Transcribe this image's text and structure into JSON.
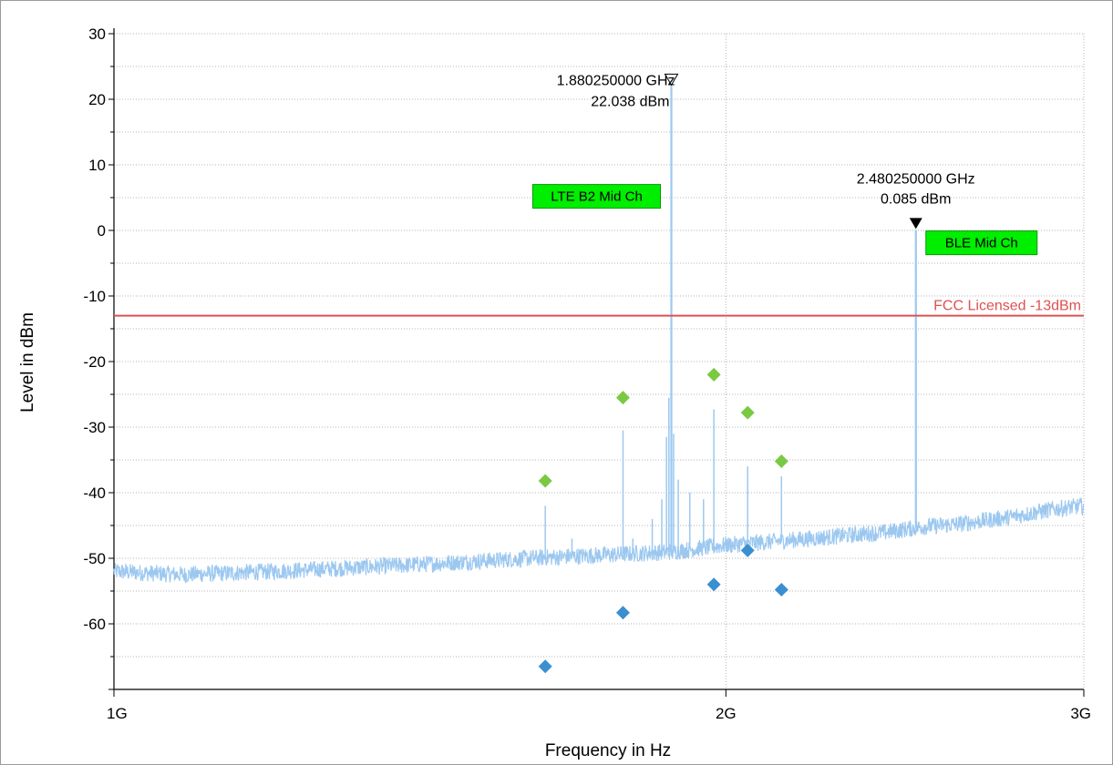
{
  "chart_data": {
    "type": "line",
    "xlabel": "Frequency in Hz",
    "ylabel": "Level in dBm",
    "x_scale": "log",
    "xlim": [
      1000000000,
      3000000000
    ],
    "ylim": [
      -70,
      30
    ],
    "x_ticks": [
      {
        "value": 1000000000,
        "label": "1G"
      },
      {
        "value": 2000000000,
        "label": "2G"
      },
      {
        "value": 3000000000,
        "label": "3G"
      }
    ],
    "y_ticks": [
      {
        "value": 30,
        "label": "30"
      },
      {
        "value": 20,
        "label": "20"
      },
      {
        "value": 10,
        "label": "10"
      },
      {
        "value": 0,
        "label": "0"
      },
      {
        "value": -10,
        "label": "-10"
      },
      {
        "value": -20,
        "label": "-20"
      },
      {
        "value": -30,
        "label": "-30"
      },
      {
        "value": -40,
        "label": "-40"
      },
      {
        "value": -50,
        "label": "-50"
      },
      {
        "value": -60,
        "label": "-60"
      }
    ],
    "grid": true,
    "colors": {
      "trace": "#9cc8f0",
      "limit": "#e05050",
      "peak_green": "#7ac943",
      "peak_blue": "#3a8fd0",
      "tag_fill": "#00ee00",
      "tag_border": "#009900"
    },
    "noise_floor": {
      "points": [
        [
          1000000000,
          -52.0
        ],
        [
          1080000000,
          -52.5
        ],
        [
          1200000000,
          -52.0
        ],
        [
          1400000000,
          -51.0
        ],
        [
          1600000000,
          -50.0
        ],
        [
          1800000000,
          -49.3
        ],
        [
          1880000000,
          -49.0
        ],
        [
          2000000000,
          -48.0
        ],
        [
          2200000000,
          -47.0
        ],
        [
          2400000000,
          -46.0
        ],
        [
          2500000000,
          -45.2
        ],
        [
          2600000000,
          -44.8
        ],
        [
          2750000000,
          -43.8
        ],
        [
          2900000000,
          -42.5
        ],
        [
          3000000000,
          -42.0
        ]
      ]
    },
    "spurs": [
      {
        "freq": 1630000000,
        "level": -42
      },
      {
        "freq": 1680000000,
        "level": -47
      },
      {
        "freq": 1780000000,
        "level": -30.5
      },
      {
        "freq": 1800000000,
        "level": -47
      },
      {
        "freq": 1840000000,
        "level": -44
      },
      {
        "freq": 1860000000,
        "level": -41
      },
      {
        "freq": 1870000000,
        "level": -31.5
      },
      {
        "freq": 1875000000,
        "level": -25.5
      },
      {
        "freq": 1885000000,
        "level": -31
      },
      {
        "freq": 1895000000,
        "level": -38
      },
      {
        "freq": 1920000000,
        "level": -40
      },
      {
        "freq": 1950000000,
        "level": -41
      },
      {
        "freq": 1973000000,
        "level": -27.3
      },
      {
        "freq": 2050000000,
        "level": -36
      },
      {
        "freq": 2130000000,
        "level": -37.5
      }
    ],
    "peaks": [
      {
        "freq": 1880250000,
        "level": 22.038,
        "freq_label": "1.880250000 GHz",
        "level_label": "22.038 dBm",
        "tag": "LTE B2 Mid Ch"
      },
      {
        "freq": 2480250000,
        "level": 0.085,
        "freq_label": "2.480250000 GHz",
        "level_label": "0.085 dBm",
        "tag": "BLE Mid Ch"
      }
    ],
    "limit_line": {
      "level": -13,
      "label": "FCC Licensed -13dBm"
    },
    "green_points": [
      {
        "freq": 1630000000,
        "level": -38.2
      },
      {
        "freq": 1780000000,
        "level": -25.5
      },
      {
        "freq": 1973000000,
        "level": -22.0
      },
      {
        "freq": 2050000000,
        "level": -27.8
      },
      {
        "freq": 2130000000,
        "level": -35.2
      }
    ],
    "blue_points": [
      {
        "freq": 1630000000,
        "level": -66.5
      },
      {
        "freq": 1780000000,
        "level": -58.3
      },
      {
        "freq": 1973000000,
        "level": -54.0
      },
      {
        "freq": 2050000000,
        "level": -48.8
      },
      {
        "freq": 2130000000,
        "level": -54.8
      }
    ]
  }
}
